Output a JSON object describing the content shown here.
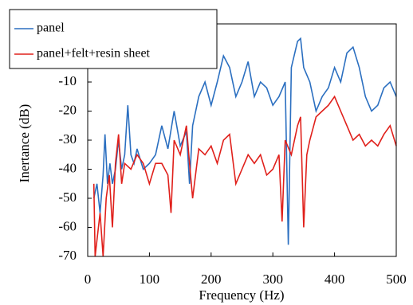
{
  "chart_data": {
    "type": "line",
    "xlabel": "Frequency (Hz)",
    "ylabel": "Inertance (dB)",
    "xlim": [
      0,
      500
    ],
    "xticks": [
      0,
      100,
      200,
      300,
      400,
      500
    ],
    "ylim": [
      -70,
      10
    ],
    "yticks": [
      -70,
      -60,
      -50,
      -40,
      -30,
      -20,
      -10
    ],
    "legend": "upper left",
    "series": [
      {
        "name": "panel",
        "color": "#2b6fc0",
        "x": [
          10,
          15,
          20,
          25,
          28,
          32,
          36,
          40,
          45,
          50,
          55,
          60,
          65,
          70,
          75,
          80,
          90,
          100,
          110,
          120,
          130,
          140,
          150,
          160,
          165,
          170,
          180,
          190,
          200,
          210,
          220,
          230,
          240,
          250,
          260,
          270,
          280,
          290,
          300,
          310,
          320,
          325,
          330,
          340,
          345,
          350,
          360,
          370,
          380,
          390,
          400,
          410,
          420,
          430,
          440,
          450,
          460,
          470,
          480,
          490,
          500
        ],
        "values": [
          -50,
          -45,
          -55,
          -42,
          -28,
          -45,
          -38,
          -45,
          -40,
          -30,
          -40,
          -35,
          -18,
          -35,
          -38,
          -33,
          -40,
          -38,
          -35,
          -25,
          -33,
          -20,
          -32,
          -27,
          -45,
          -25,
          -15,
          -10,
          -18,
          -10,
          -1,
          -5,
          -15,
          -10,
          -3,
          -15,
          -10,
          -12,
          -18,
          -15,
          -10,
          -66,
          -5,
          4,
          5,
          -5,
          -10,
          -20,
          -15,
          -12,
          -5,
          -10,
          0,
          2,
          -5,
          -15,
          -20,
          -18,
          -12,
          -10,
          -15
        ]
      },
      {
        "name": "panel+felt+resin sheet",
        "color": "#e0201b",
        "x": [
          10,
          12,
          20,
          25,
          30,
          35,
          40,
          45,
          50,
          55,
          60,
          70,
          80,
          90,
          100,
          110,
          120,
          130,
          135,
          140,
          150,
          160,
          165,
          170,
          180,
          190,
          200,
          210,
          220,
          230,
          240,
          250,
          260,
          270,
          280,
          290,
          300,
          310,
          315,
          320,
          330,
          340,
          345,
          350,
          355,
          360,
          370,
          380,
          390,
          400,
          410,
          420,
          430,
          440,
          450,
          460,
          470,
          480,
          490,
          500
        ],
        "values": [
          -45,
          -70,
          -55,
          -70,
          -50,
          -42,
          -60,
          -38,
          -28,
          -45,
          -38,
          -40,
          -35,
          -38,
          -45,
          -38,
          -38,
          -42,
          -55,
          -30,
          -35,
          -25,
          -38,
          -50,
          -33,
          -35,
          -32,
          -38,
          -30,
          -28,
          -45,
          -40,
          -35,
          -38,
          -35,
          -42,
          -40,
          -35,
          -58,
          -30,
          -35,
          -25,
          -22,
          -60,
          -35,
          -30,
          -22,
          -20,
          -18,
          -15,
          -20,
          -25,
          -30,
          -28,
          -32,
          -30,
          -32,
          -28,
          -25,
          -32
        ]
      }
    ]
  }
}
